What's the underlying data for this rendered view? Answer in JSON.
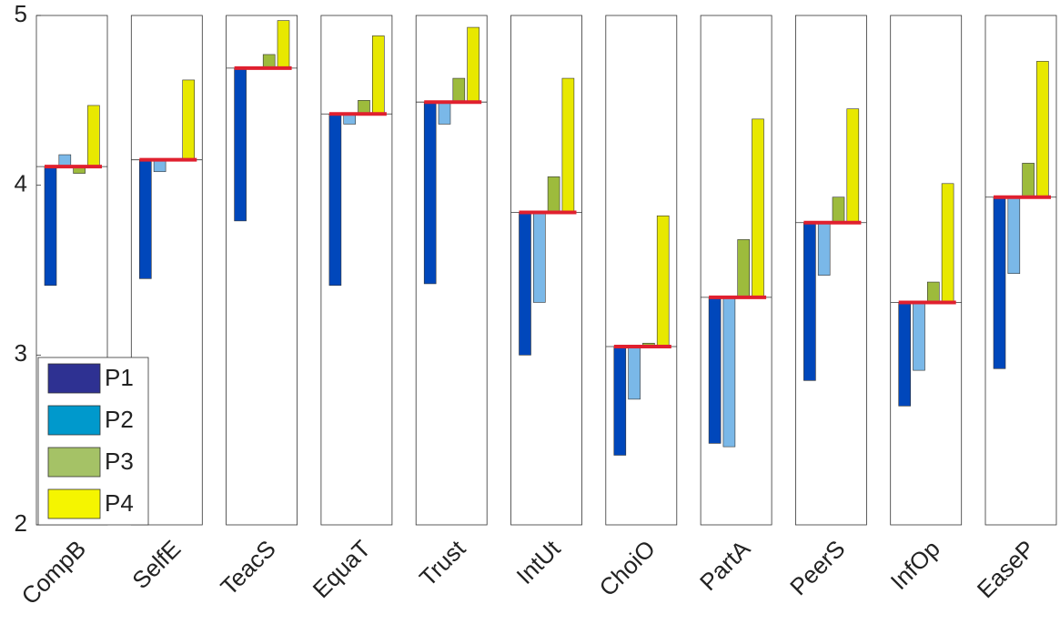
{
  "chart_data": {
    "type": "deviation-bar",
    "categories": [
      "CompB",
      "SelfE",
      "TeacS",
      "EquaT",
      "Trust",
      "IntUt",
      "ChoiO",
      "PartA",
      "PeerS",
      "InfOp",
      "EaseP"
    ],
    "baseline": [
      4.11,
      4.15,
      4.69,
      4.42,
      4.49,
      3.84,
      3.05,
      3.34,
      3.78,
      3.31,
      3.93
    ],
    "baseline_color": "#e0202f",
    "series": [
      {
        "name": "P1",
        "color": "#0047bb",
        "legend_color": "#2e3192",
        "values": [
          3.41,
          3.45,
          3.79,
          3.41,
          3.42,
          3.0,
          2.41,
          2.48,
          2.85,
          2.7,
          2.92
        ]
      },
      {
        "name": "P2",
        "color": "#7ab8e8",
        "legend_color": "#0099cc",
        "values": [
          4.18,
          4.08,
          4.69,
          4.36,
          4.36,
          3.31,
          2.74,
          2.46,
          3.47,
          2.91,
          3.48
        ]
      },
      {
        "name": "P3",
        "color": "#9dbb3c",
        "legend_color": "#a5c266",
        "values": [
          4.07,
          4.15,
          4.77,
          4.5,
          4.63,
          4.05,
          3.07,
          3.68,
          3.93,
          3.43,
          4.13
        ]
      },
      {
        "name": "P4",
        "color": "#e8e800",
        "legend_color": "#f5f500",
        "values": [
          4.47,
          4.62,
          4.97,
          4.88,
          4.93,
          4.63,
          3.82,
          4.39,
          4.45,
          4.01,
          4.73
        ]
      }
    ],
    "ylim": [
      2,
      5
    ],
    "yticks": [
      2,
      3,
      4,
      5
    ],
    "legend": "lower-left"
  }
}
